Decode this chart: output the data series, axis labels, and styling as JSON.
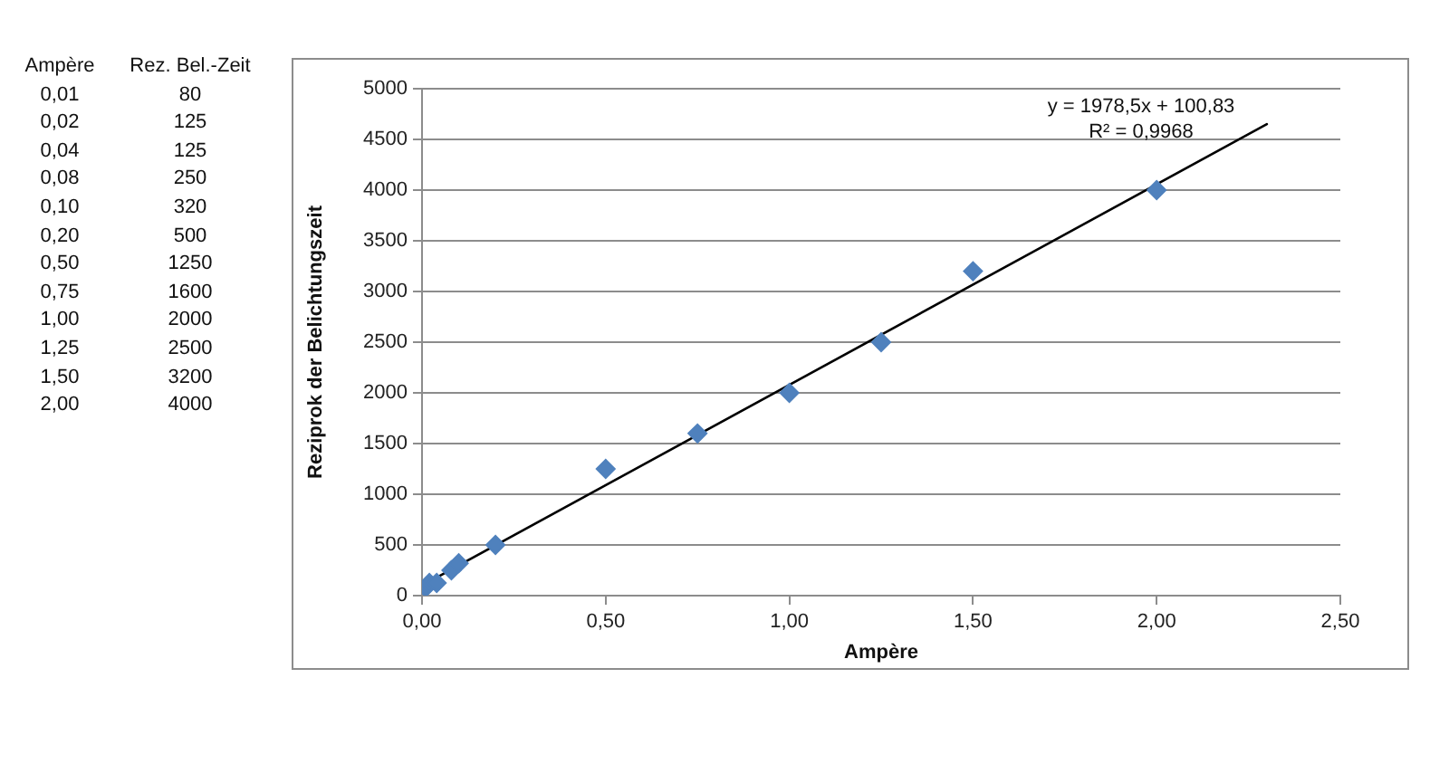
{
  "chart_data": [
    {
      "type": "other",
      "annotations": [
        "Ampère",
        "Rez. Bel.-Zeit",
        "0,01",
        "80",
        "0,02",
        "125",
        "0,04",
        "125",
        "0,08",
        "250",
        "0,10",
        "320",
        "0,20",
        "500",
        "0,50",
        "1250",
        "0,75",
        "1600",
        "1,00",
        "2000",
        "1,25",
        "2500",
        "1,50",
        "3200",
        "2,00",
        "4000"
      ]
    },
    {
      "type": "scatter",
      "xlabel": "Ampère",
      "ylabel": "Reziprok der Belichtungszeit",
      "annotations": [
        "y = 1978,5x + 100,83",
        "R² = 0,9968"
      ],
      "series": [
        {
          "type": "scatter",
          "color": "#4f81bd",
          "marker": "diamond",
          "x": [
            0.01,
            0.02,
            0.04,
            0.08,
            0.1,
            0.2,
            0.5,
            0.75,
            1.0,
            1.25,
            1.5,
            2.0
          ],
          "values": [
            80,
            125,
            125,
            250,
            320,
            500,
            1250,
            1600,
            2000,
            2500,
            3200,
            4000
          ]
        },
        {
          "type": "line",
          "color": "#000000",
          "marker": "none",
          "line_style": "solid",
          "x": [
            0.01,
            2.3
          ],
          "values": [
            120,
            4650
          ]
        }
      ],
      "xlim": [
        0,
        2.5
      ],
      "xticks": [
        {
          "value": 0,
          "label": "0,00"
        },
        {
          "value": 0.5,
          "label": "0,50"
        },
        {
          "value": 1,
          "label": "1,00"
        },
        {
          "value": 1.5,
          "label": "1,50"
        },
        {
          "value": 2,
          "label": "2,00"
        },
        {
          "value": 2.5,
          "label": "2,50"
        }
      ],
      "ylim": [
        0,
        5000
      ],
      "yticks": [
        0,
        500,
        1000,
        1500,
        2000,
        2500,
        3000,
        3500,
        4000,
        4500,
        5000
      ],
      "grid": "y",
      "legend": false
    }
  ]
}
